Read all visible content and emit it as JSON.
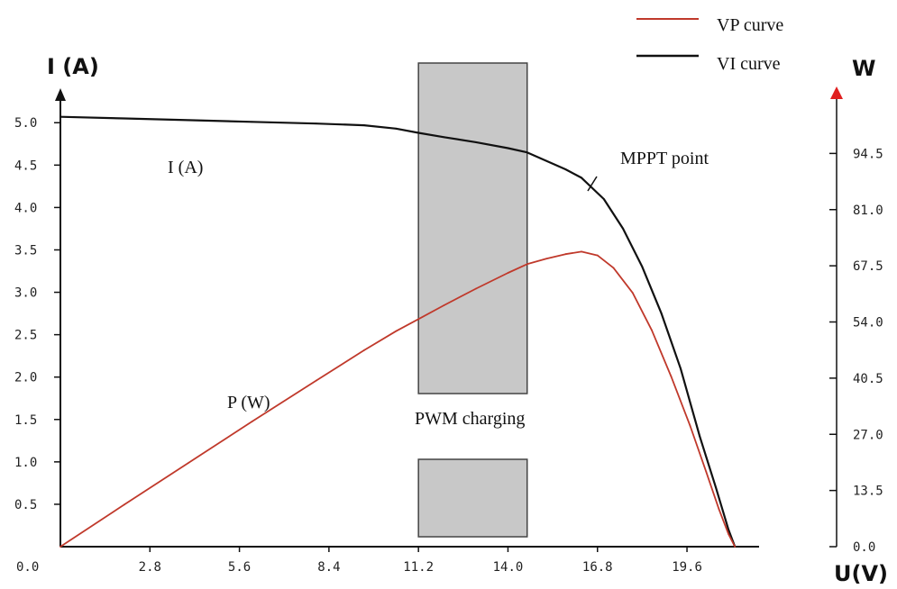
{
  "chart_data": {
    "type": "line",
    "xlabel": "U(V)",
    "ylabel_left": "I (A)",
    "ylabel_right": "W",
    "xlim": [
      0,
      21.8
    ],
    "ylim_left": [
      0,
      5.3
    ],
    "ylim_right": [
      0,
      108
    ],
    "x_ticks": [
      "0.0",
      "2.8",
      "5.6",
      "8.4",
      "11.2",
      "14.0",
      "16.8",
      "19.6"
    ],
    "x_tick_values": [
      0,
      2.8,
      5.6,
      8.4,
      11.2,
      14.0,
      16.8,
      19.6
    ],
    "y_left_ticks": [
      "0.5",
      "1.0",
      "1.5",
      "2.0",
      "2.5",
      "3.0",
      "3.5",
      "4.0",
      "4.5",
      "5.0"
    ],
    "y_left_tick_values": [
      0.5,
      1.0,
      1.5,
      2.0,
      2.5,
      3.0,
      3.5,
      4.0,
      4.5,
      5.0
    ],
    "y_right_ticks": [
      "0.0",
      "13.5",
      "27.0",
      "40.5",
      "54.0",
      "67.5",
      "81.0",
      "94.5"
    ],
    "y_right_tick_values": [
      0,
      13.5,
      27.0,
      40.5,
      54.0,
      67.5,
      81.0,
      94.5
    ],
    "series": [
      {
        "name": "VI curve",
        "axis": "left",
        "color": "#111111",
        "x": [
          0,
          2,
          4,
          6,
          8,
          9.5,
          10.5,
          11.2,
          12,
          13,
          14,
          14.6,
          15.2,
          15.8,
          16.3,
          17,
          17.6,
          18.2,
          18.8,
          19.4,
          20,
          20.5,
          20.9,
          21.1
        ],
        "y": [
          5.07,
          5.05,
          5.03,
          5.01,
          4.99,
          4.97,
          4.93,
          4.88,
          4.83,
          4.77,
          4.7,
          4.65,
          4.55,
          4.45,
          4.35,
          4.1,
          3.75,
          3.3,
          2.75,
          2.1,
          1.3,
          0.7,
          0.2,
          0.0
        ]
      },
      {
        "name": "VP curve",
        "axis": "right",
        "color": "#c0392b",
        "x": [
          0,
          2,
          4,
          6,
          8,
          9.5,
          10.5,
          11.2,
          12,
          13,
          14,
          14.6,
          15.2,
          15.8,
          16.3,
          16.8,
          17.3,
          17.9,
          18.5,
          19.1,
          19.7,
          20.2,
          20.6,
          20.9,
          21.1
        ],
        "y": [
          0,
          10.1,
          20.1,
          30.1,
          39.9,
          47.2,
          51.8,
          54.7,
          58.0,
          62.0,
          65.8,
          67.9,
          69.2,
          70.3,
          70.9,
          70.0,
          67.0,
          61.0,
          52.0,
          41.0,
          29.0,
          18.0,
          9.0,
          3.0,
          0.0
        ]
      }
    ],
    "shaded_region": {
      "x": [
        11.2,
        14.6
      ],
      "label": "PWM charging"
    },
    "annotations": {
      "current": "I (A)",
      "power": "P (W)",
      "mppt": "MPPT point",
      "pwm": "PWM charging"
    },
    "legend": {
      "position": "top-right",
      "items": [
        "VP curve",
        "VI curve"
      ]
    },
    "colors": {
      "vp": "#c0392b",
      "vi": "#111111",
      "shade": "#c8c8c8",
      "arrow_right": "#e02020"
    }
  }
}
